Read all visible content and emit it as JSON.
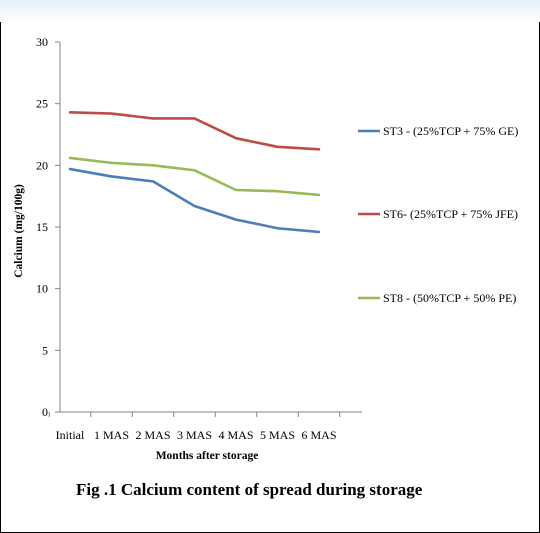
{
  "chart_data": {
    "type": "line",
    "title": "Fig .1 Calcium content of spread during storage",
    "xlabel": "Months after storage",
    "ylabel": "Calcium (mg/100g)",
    "categories": [
      "Initial",
      "1 MAS",
      "2 MAS",
      "3 MAS",
      "4 MAS",
      "5 MAS",
      "6 MAS"
    ],
    "ylim": [
      0,
      30
    ],
    "yticks": [
      0,
      5,
      10,
      15,
      20,
      25,
      30
    ],
    "grid": false,
    "legend_position": "right",
    "series": [
      {
        "name": "ST3 - (25%TCP + 75% GE)",
        "color": "#4a7ebb",
        "values": [
          19.7,
          19.1,
          18.7,
          16.7,
          15.6,
          14.9,
          14.6
        ]
      },
      {
        "name": "ST6- (25%TCP + 75% JFE)",
        "color": "#be4b48",
        "values": [
          24.3,
          24.2,
          23.8,
          23.8,
          22.2,
          21.5,
          21.3
        ]
      },
      {
        "name": "ST8 - (50%TCP + 50% PE)",
        "color": "#98b954",
        "values": [
          20.6,
          20.2,
          20.0,
          19.6,
          18.0,
          17.9,
          17.6
        ]
      }
    ]
  }
}
